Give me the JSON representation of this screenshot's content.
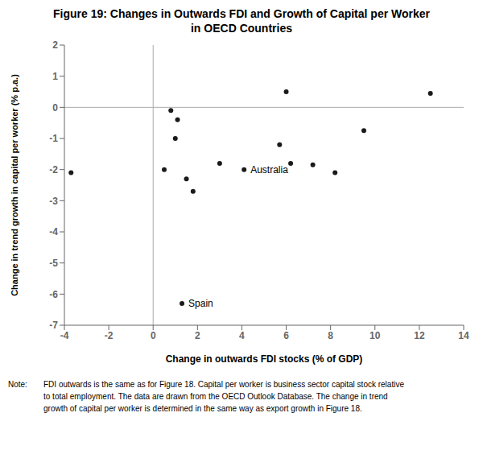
{
  "chart_data": {
    "type": "scatter",
    "title": "Figure 19: Changes in Outwards FDI and Growth of Capital per Worker",
    "subtitle": "in OECD Countries",
    "x_label": "Change in outwards FDI stocks (% of GDP)",
    "y_label": "Change in trend growth in capital per worker (% p.a.)",
    "xlim": [
      -4,
      14
    ],
    "ylim": [
      -7,
      2
    ],
    "xticks": [
      -4,
      -2,
      0,
      2,
      4,
      6,
      8,
      10,
      12,
      14
    ],
    "yticks": [
      -7,
      -6,
      -5,
      -4,
      -3,
      -2,
      -1,
      0,
      1,
      2
    ],
    "x": [
      -3.7,
      0.8,
      1.1,
      1.0,
      0.5,
      1.5,
      1.8,
      3.0,
      4.1,
      5.7,
      6.0,
      6.2,
      7.2,
      8.2,
      9.5,
      12.5,
      1.3
    ],
    "values": [
      -2.1,
      -0.1,
      -0.4,
      -1.0,
      -2.0,
      -2.3,
      -2.7,
      -1.8,
      -2.0,
      -1.2,
      0.5,
      -1.8,
      -1.85,
      -2.1,
      -0.75,
      0.45,
      -6.3
    ],
    "color": "#1a1a1a",
    "grid": false,
    "reference_lines": [
      {
        "axis": "x",
        "value": 0,
        "color": "#aaaaaa"
      },
      {
        "axis": "y",
        "value": 0,
        "color": "#aaaaaa"
      }
    ],
    "annotations": [
      {
        "text": "Australia",
        "x": 4.1,
        "y": -2.0
      },
      {
        "text": "Spain",
        "x": 1.3,
        "y": -6.3
      }
    ],
    "note": {
      "label": "Note:",
      "lines": [
        "FDI outwards is the same as for Figure 18. Capital per worker is business sector capital stock relative",
        "to total employment. The data are drawn from the OECD Outlook Database. The change in trend",
        "growth of capital per worker is determined in the same way as export growth in Figure 18."
      ]
    }
  }
}
